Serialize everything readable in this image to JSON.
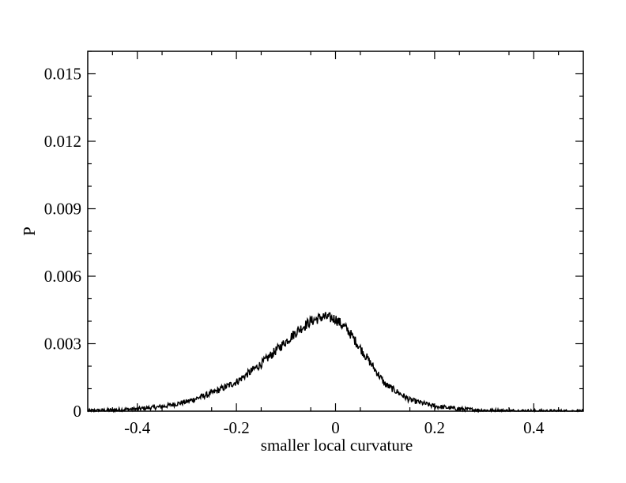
{
  "chart_data": {
    "type": "line",
    "title": "",
    "xlabel": "smaller local curvature",
    "ylabel": "P",
    "xlim": [
      -0.5,
      0.5
    ],
    "ylim": [
      0,
      0.016
    ],
    "grid": false,
    "legend": "none",
    "line_color": "#000000",
    "xticks": [
      -0.4,
      -0.2,
      0,
      0.2,
      0.4
    ],
    "xtick_labels": [
      "-0.4",
      "-0.2",
      "0",
      "0.2",
      "0.4"
    ],
    "yticks": [
      0,
      0.003,
      0.006,
      0.009,
      0.012,
      0.015
    ],
    "ytick_labels": [
      "0",
      "0.003",
      "0.006",
      "0.009",
      "0.012",
      "0.015"
    ],
    "series": [
      {
        "x": [
          -0.5,
          -0.45,
          -0.4,
          -0.35,
          -0.3,
          -0.25,
          -0.2,
          -0.15,
          -0.1,
          -0.075,
          -0.05,
          -0.025,
          0,
          0.025,
          0.05,
          0.075,
          0.1,
          0.15,
          0.2,
          0.25,
          0.3,
          0.35,
          0.4,
          0.45,
          0.5
        ],
        "y": [
          2e-05,
          5e-05,
          0.0001,
          0.0002,
          0.00042,
          0.0008,
          0.0013,
          0.0021,
          0.0031,
          0.0036,
          0.004,
          0.0042,
          0.0041,
          0.0036,
          0.0028,
          0.002,
          0.0012,
          0.0005,
          0.00022,
          0.0001,
          4e-05,
          2e-05,
          1e-05,
          5e-06,
          2e-06
        ]
      }
    ]
  }
}
